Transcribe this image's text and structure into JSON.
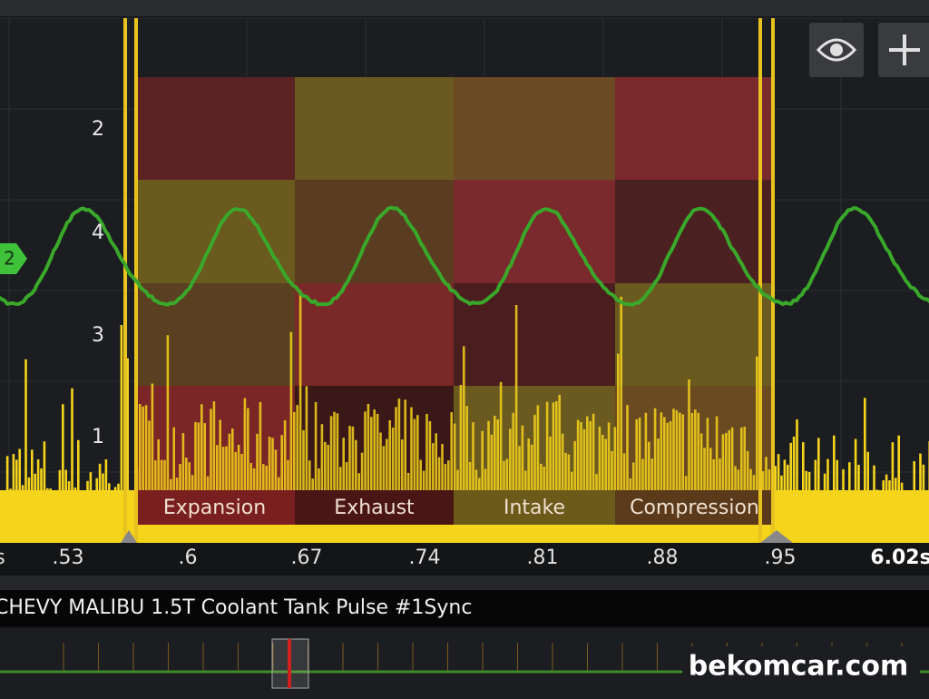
{
  "screen": {
    "row_labels": [
      "2",
      "4",
      "3",
      "1"
    ],
    "phases": [
      "Expansion",
      "Exhaust",
      "Intake",
      "Compression"
    ],
    "time_labels": [
      "s",
      ".53",
      ".6",
      ".67",
      ".74",
      ".81",
      ".88",
      ".95",
      "6.02s"
    ],
    "channel_marker": "2",
    "trace_title": "CHEVY MALIBU 1.5T Coolant Tank Pulse #1Sync",
    "watermark": "bekomcar.com"
  }
}
